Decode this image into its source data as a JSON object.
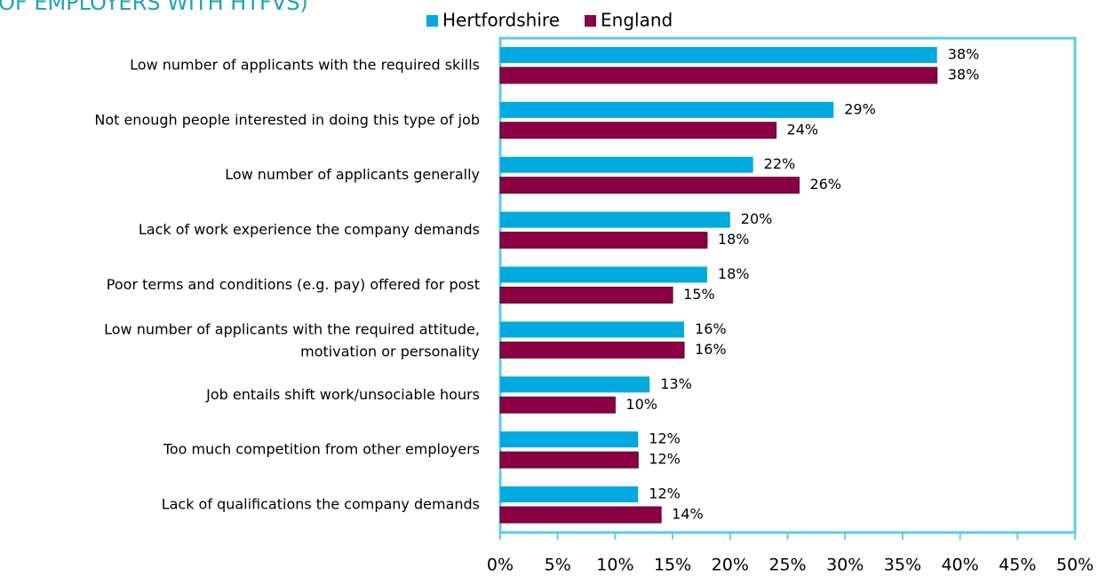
{
  "chart_data": {
    "type": "hbar",
    "title": "OF EMPLOYERS WITH HTFVS)",
    "categories": [
      "Low number of applicants with the required skills",
      "Not enough people interested in doing this type of job",
      "Low number of applicants generally",
      "Lack of work experience the company demands",
      "Poor terms and conditions (e.g. pay) offered for post",
      "Low number of applicants with the required attitude, motivation or personality",
      "Job entails shift work/unsociable hours",
      "Too much competition from other employers",
      "Lack of qualifications the company demands"
    ],
    "series": [
      {
        "name": "Hertfordshire",
        "color": "#00a9e0",
        "values": [
          38,
          29,
          22,
          20,
          18,
          16,
          13,
          12,
          12
        ],
        "value_labels": [
          "38%",
          "29%",
          "22%",
          "20%",
          "18%",
          "16%",
          "13%",
          "12%",
          "12%"
        ]
      },
      {
        "name": "England",
        "color": "#8b0045",
        "values": [
          38,
          24,
          26,
          18,
          15,
          16,
          10,
          12,
          14
        ],
        "value_labels": [
          "38%",
          "24%",
          "26%",
          "18%",
          "15%",
          "16%",
          "10%",
          "12%",
          "14%"
        ]
      }
    ],
    "xlim": [
      0,
      50
    ],
    "xticks": [
      {
        "value": 0,
        "label": "0%"
      },
      {
        "value": 5,
        "label": "5%"
      },
      {
        "value": 10,
        "label": "10%"
      },
      {
        "value": 15,
        "label": "15%"
      },
      {
        "value": 20,
        "label": "20%"
      },
      {
        "value": 25,
        "label": "25%"
      },
      {
        "value": 30,
        "label": "30%"
      },
      {
        "value": 35,
        "label": "35%"
      },
      {
        "value": 40,
        "label": "40%"
      },
      {
        "value": 45,
        "label": "45%"
      },
      {
        "value": 50,
        "label": "50%"
      }
    ],
    "legend": "top"
  }
}
